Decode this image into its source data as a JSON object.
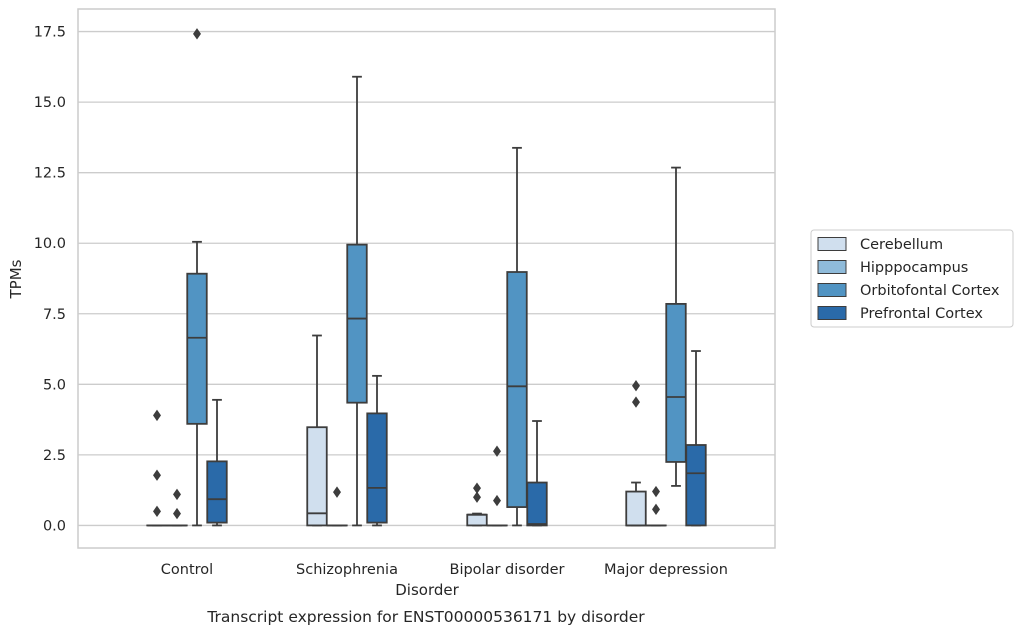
{
  "chart_data": {
    "type": "box",
    "title": "Transcript expression for ENST00000536171 by disorder",
    "xlabel": "Disorder",
    "ylabel": "TPMs",
    "ylim": [
      -0.8,
      18.3
    ],
    "yticks": [
      0.0,
      2.5,
      5.0,
      7.5,
      10.0,
      12.5,
      15.0,
      17.5
    ],
    "ytick_labels": [
      "0.0",
      "2.5",
      "5.0",
      "7.5",
      "10.0",
      "12.5",
      "15.0",
      "17.5"
    ],
    "grid": "horizontal",
    "legend_position": "right",
    "categories": [
      "Control",
      "Schizophrenia",
      "Bipolar disorder",
      "Major depression"
    ],
    "series": [
      {
        "name": "Cerebellum",
        "color": "#d0dfee",
        "boxes": [
          {
            "q1": 0.0,
            "median": 0.0,
            "q3": 0.0,
            "whisker_low": 0.0,
            "whisker_high": 0.0,
            "outliers": [
              3.9,
              1.78,
              0.5
            ]
          },
          {
            "q1": 0.0,
            "median": 0.43,
            "q3": 3.48,
            "whisker_low": 0.0,
            "whisker_high": 6.73,
            "outliers": []
          },
          {
            "q1": 0.0,
            "median": 0.38,
            "q3": 0.38,
            "whisker_low": 0.0,
            "whisker_high": 0.42,
            "outliers": [
              1.32,
              1.0
            ]
          },
          {
            "q1": 0.0,
            "median": 0.0,
            "q3": 1.2,
            "whisker_low": 0.0,
            "whisker_high": 1.52,
            "outliers": [
              4.95,
              4.37
            ]
          }
        ]
      },
      {
        "name": "Hipppocampus",
        "color": "#8fbbda",
        "boxes": [
          {
            "q1": 0.0,
            "median": 0.0,
            "q3": 0.0,
            "whisker_low": 0.0,
            "whisker_high": 0.0,
            "outliers": [
              1.1,
              0.42
            ]
          },
          {
            "q1": 0.0,
            "median": 0.0,
            "q3": 0.0,
            "whisker_low": 0.0,
            "whisker_high": 0.0,
            "outliers": [
              1.18
            ]
          },
          {
            "q1": 0.0,
            "median": 0.0,
            "q3": 0.0,
            "whisker_low": 0.0,
            "whisker_high": 0.0,
            "outliers": [
              2.63,
              0.88
            ]
          },
          {
            "q1": 0.0,
            "median": 0.0,
            "q3": 0.0,
            "whisker_low": 0.0,
            "whisker_high": 0.0,
            "outliers": [
              1.2,
              0.57
            ]
          }
        ]
      },
      {
        "name": "Orbitofontal Cortex",
        "color": "#5194c3",
        "boxes": [
          {
            "q1": 3.6,
            "median": 6.65,
            "q3": 8.92,
            "whisker_low": 0.0,
            "whisker_high": 10.05,
            "outliers": [
              17.42
            ]
          },
          {
            "q1": 4.35,
            "median": 7.33,
            "q3": 9.95,
            "whisker_low": 0.0,
            "whisker_high": 15.9,
            "outliers": []
          },
          {
            "q1": 0.65,
            "median": 4.93,
            "q3": 8.98,
            "whisker_low": 0.0,
            "whisker_high": 13.38,
            "outliers": []
          },
          {
            "q1": 2.25,
            "median": 4.55,
            "q3": 7.85,
            "whisker_low": 1.4,
            "whisker_high": 12.68,
            "outliers": []
          }
        ]
      },
      {
        "name": "Prefrontal Cortex",
        "color": "#2a6aa9",
        "boxes": [
          {
            "q1": 0.1,
            "median": 0.93,
            "q3": 2.27,
            "whisker_low": 0.0,
            "whisker_high": 4.45,
            "outliers": []
          },
          {
            "q1": 0.1,
            "median": 1.33,
            "q3": 3.97,
            "whisker_low": 0.0,
            "whisker_high": 5.3,
            "outliers": []
          },
          {
            "q1": 0.0,
            "median": 0.05,
            "q3": 1.52,
            "whisker_low": 0.0,
            "whisker_high": 3.7,
            "outliers": []
          },
          {
            "q1": 0.0,
            "median": 1.85,
            "q3": 2.85,
            "whisker_low": 0.0,
            "whisker_high": 6.18,
            "outliers": []
          }
        ]
      }
    ]
  },
  "colors": {
    "grid": "#cccccc",
    "frame": "#cccccc",
    "box_edge": "#3d3d3d",
    "text": "#262626"
  }
}
